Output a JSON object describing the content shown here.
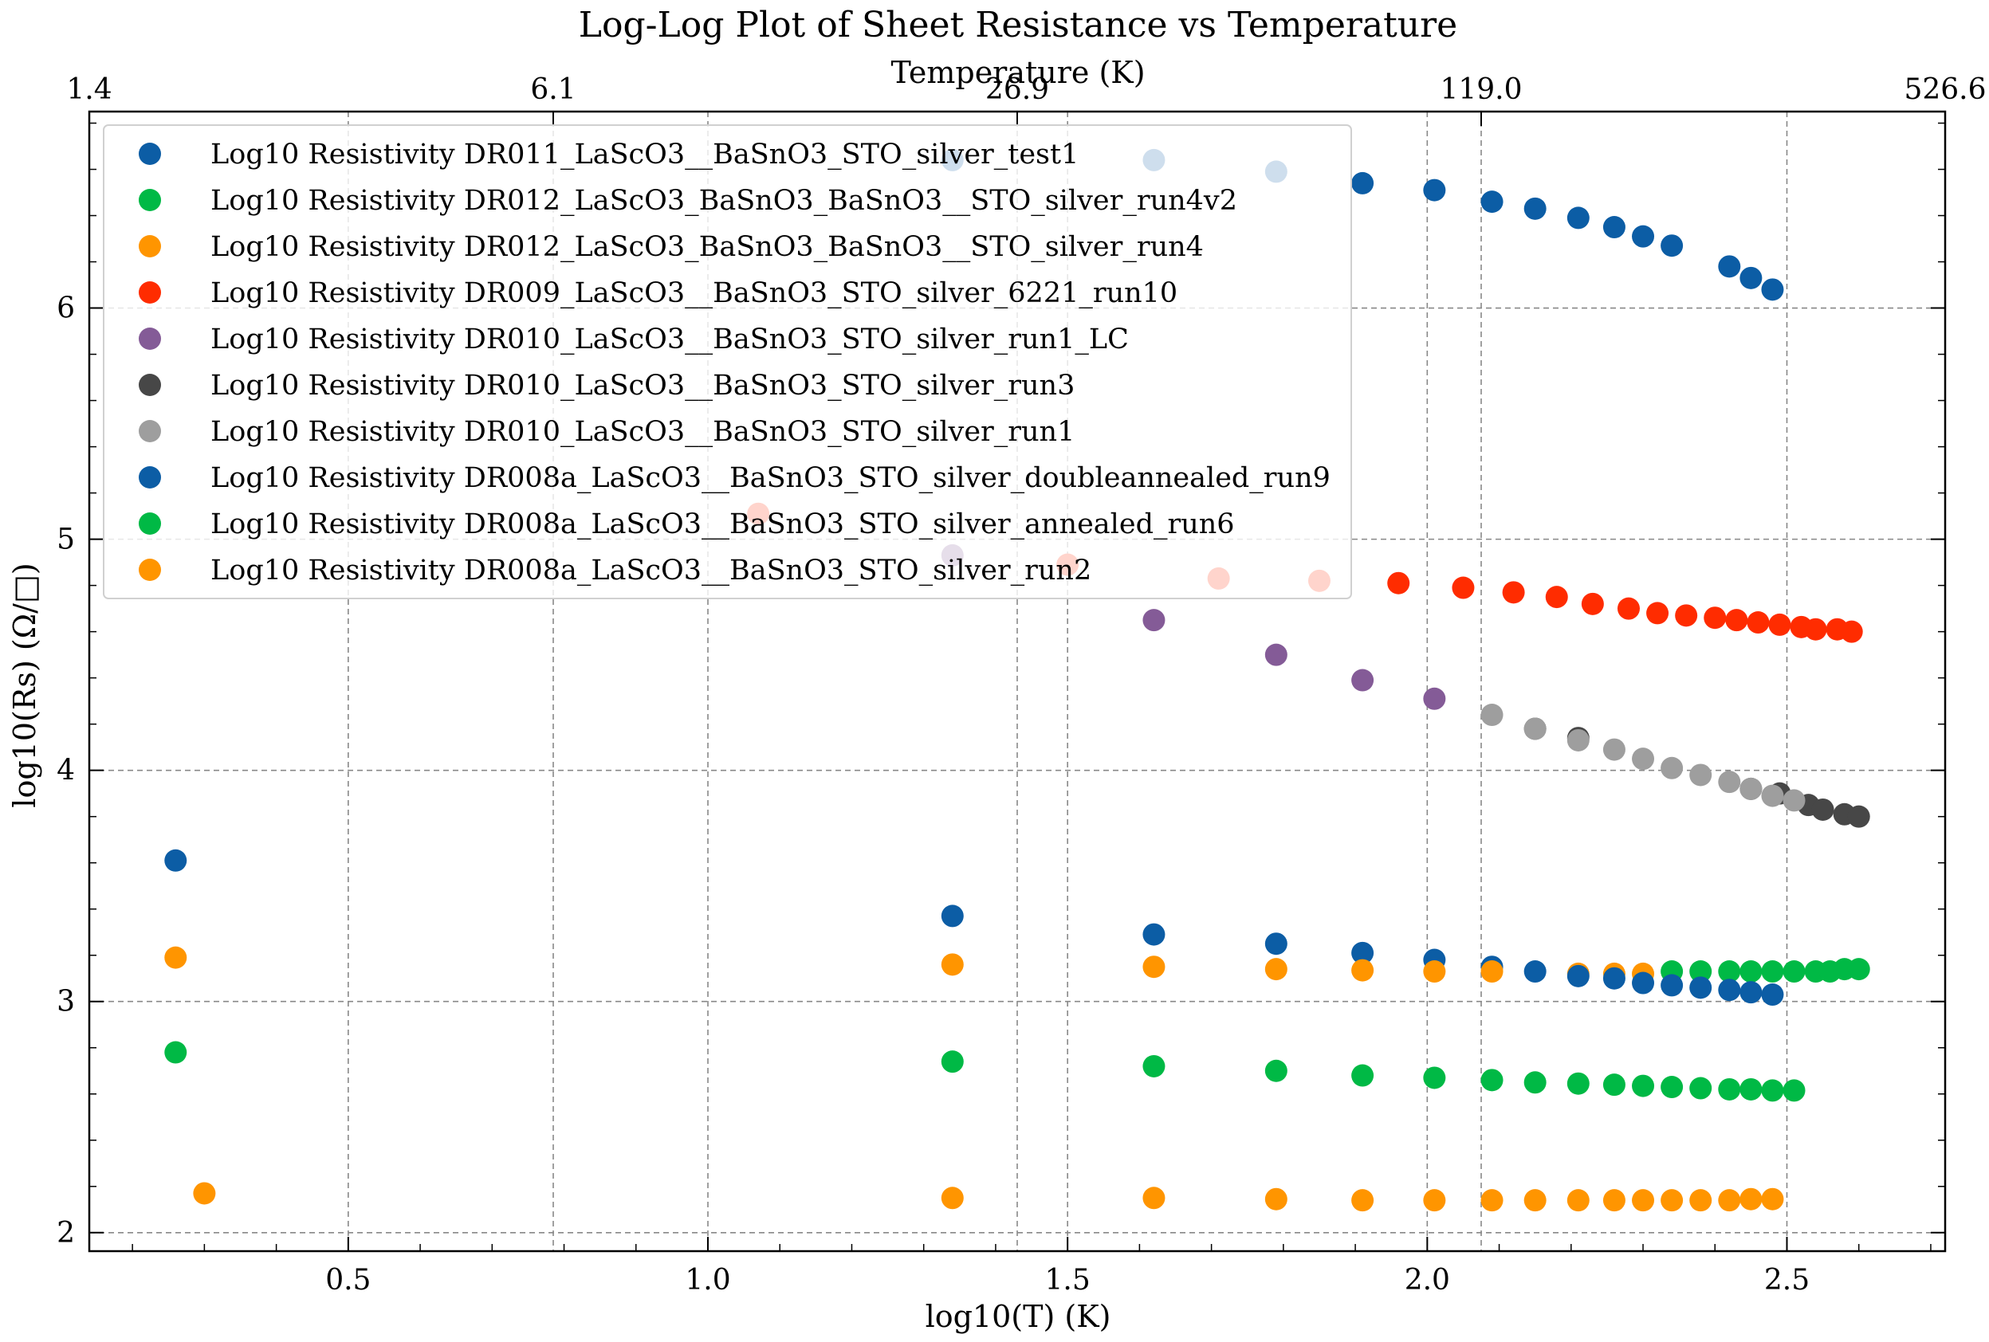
{
  "chart_data": {
    "type": "scatter",
    "title": "Log-Log Plot of Sheet Resistance vs Temperature",
    "xlabel": "log10(T) (K)",
    "ylabel": "log10(Rs) (Ω/□)",
    "top_xlabel": "Temperature (K)",
    "xlim": [
      0.14,
      2.72
    ],
    "ylim": [
      1.92,
      6.85
    ],
    "x_ticks": [
      0.5,
      1.0,
      1.5,
      2.0,
      2.5
    ],
    "x_tick_labels": [
      "0.5",
      "1.0",
      "1.5",
      "2.0",
      "2.5"
    ],
    "y_ticks": [
      2,
      3,
      4,
      5,
      6
    ],
    "y_tick_labels": [
      "2",
      "3",
      "4",
      "5",
      "6"
    ],
    "top_ticks": [
      0.14,
      0.785,
      1.43,
      2.075,
      2.72
    ],
    "top_tick_labels": [
      "1.4",
      "6.1",
      "26.9",
      "119.0",
      "526.6"
    ],
    "grid": true,
    "legend_position": "upper-left",
    "series": [
      {
        "name": "Log10 Resistivity DR011_LaScO3__BaSnO3_STO_silver_test1",
        "color": "#0C5DA5",
        "alpha": 1.0,
        "x": [
          1.34,
          1.62,
          1.79,
          1.91,
          2.01,
          2.09,
          2.15,
          2.21,
          2.26,
          2.3,
          2.34,
          2.42,
          2.45,
          2.48
        ],
        "y": [
          6.64,
          6.64,
          6.59,
          6.54,
          6.51,
          6.46,
          6.43,
          6.39,
          6.35,
          6.31,
          6.27,
          6.18,
          6.13,
          6.08
        ]
      },
      {
        "name": "Log10 Resistivity DR012_LaScO3_BaSnO3_BaSnO3__STO_silver_run4v2",
        "color": "#00B945",
        "alpha": 1.0,
        "x": [
          2.34,
          2.38,
          2.42,
          2.45,
          2.48,
          2.51,
          2.54,
          2.56,
          2.58,
          2.6
        ],
        "y": [
          3.13,
          3.13,
          3.13,
          3.13,
          3.13,
          3.13,
          3.13,
          3.13,
          3.14,
          3.14
        ]
      },
      {
        "name": "Log10 Resistivity DR012_LaScO3_BaSnO3_BaSnO3__STO_silver_run4",
        "color": "#FF9500",
        "alpha": 1.0,
        "x": [
          2.21,
          2.26,
          2.3
        ],
        "y": [
          3.12,
          3.12,
          3.12
        ]
      },
      {
        "name": "Log10 Resistivity DR009_LaScO3__BaSnO3_STO_silver_6221_run10",
        "color": "#FF2C00",
        "alpha": 1.0,
        "x": [
          1.07,
          1.5,
          1.71,
          1.85,
          1.96,
          2.05,
          2.12,
          2.18,
          2.23,
          2.28,
          2.32,
          2.36,
          2.4,
          2.43,
          2.46,
          2.49,
          2.52,
          2.54,
          2.57,
          2.59
        ],
        "y": [
          5.11,
          4.89,
          4.83,
          4.82,
          4.81,
          4.79,
          4.77,
          4.75,
          4.72,
          4.7,
          4.68,
          4.67,
          4.66,
          4.65,
          4.64,
          4.63,
          4.62,
          4.61,
          4.61,
          4.6
        ]
      },
      {
        "name": "Log10 Resistivity DR010_LaScO3__BaSnO3_STO_silver_run1_LC",
        "color": "#845B97",
        "alpha": 1.0,
        "x": [
          1.34,
          1.62,
          1.79,
          1.91,
          2.01
        ],
        "y": [
          4.93,
          4.65,
          4.5,
          4.39,
          4.31
        ]
      },
      {
        "name": "Log10 Resistivity DR010_LaScO3__BaSnO3_STO_silver_run3",
        "color": "#474747",
        "alpha": 1.0,
        "x": [
          2.15,
          2.21,
          2.45,
          2.49,
          2.53,
          2.55,
          2.58,
          2.6
        ],
        "y": [
          4.18,
          4.14,
          3.92,
          3.9,
          3.85,
          3.83,
          3.81,
          3.8
        ]
      },
      {
        "name": "Log10 Resistivity DR010_LaScO3__BaSnO3_STO_silver_run1",
        "color": "#9E9E9E",
        "alpha": 1.0,
        "x": [
          2.09,
          2.15,
          2.21,
          2.26,
          2.3,
          2.34,
          2.38,
          2.42,
          2.45,
          2.48,
          2.51
        ],
        "y": [
          4.24,
          4.18,
          4.13,
          4.09,
          4.05,
          4.01,
          3.98,
          3.95,
          3.92,
          3.89,
          3.87
        ]
      },
      {
        "name": "Log10 Resistivity DR008a_LaScO3__BaSnO3_STO_silver_doubleannealed_run9",
        "color": "#0C5DA5",
        "alpha": 1.0,
        "x": [
          0.26,
          1.34,
          1.62,
          1.79,
          1.91,
          2.01,
          2.09,
          2.15,
          2.21,
          2.26,
          2.3,
          2.34,
          2.38,
          2.42,
          2.45,
          2.48
        ],
        "y": [
          3.61,
          3.37,
          3.29,
          3.25,
          3.21,
          3.18,
          3.15,
          3.13,
          3.11,
          3.1,
          3.08,
          3.07,
          3.06,
          3.05,
          3.04,
          3.03
        ]
      },
      {
        "name": "Log10 Resistivity DR008a_LaScO3__BaSnO3_STO_silver_annealed_run6",
        "color": "#00B945",
        "alpha": 1.0,
        "x": [
          0.26,
          1.34,
          1.62,
          1.79,
          1.91,
          2.01,
          2.09,
          2.15,
          2.21,
          2.26,
          2.3,
          2.34,
          2.38,
          2.42,
          2.45,
          2.48,
          2.51
        ],
        "y": [
          2.78,
          2.74,
          2.72,
          2.7,
          2.68,
          2.67,
          2.66,
          2.65,
          2.645,
          2.64,
          2.635,
          2.63,
          2.625,
          2.62,
          2.62,
          2.615,
          2.615
        ]
      },
      {
        "name": "Log10 Resistivity DR008a_LaScO3__BaSnO3_STO_silver_run2",
        "color": "#FF9500",
        "alpha": 1.0,
        "x": [
          0.26,
          0.3,
          1.34,
          1.34,
          1.62,
          1.62,
          1.79,
          1.79,
          1.91,
          1.91,
          2.01,
          2.01,
          2.09,
          2.09,
          2.15,
          2.21,
          2.26,
          2.3,
          2.34,
          2.38,
          2.42,
          2.45,
          2.48
        ],
        "y": [
          3.19,
          2.17,
          3.16,
          2.15,
          3.15,
          2.15,
          3.14,
          2.145,
          3.135,
          2.14,
          3.13,
          2.14,
          3.13,
          2.14,
          2.14,
          2.14,
          2.14,
          2.14,
          2.14,
          2.14,
          2.14,
          2.145,
          2.145
        ]
      }
    ]
  }
}
